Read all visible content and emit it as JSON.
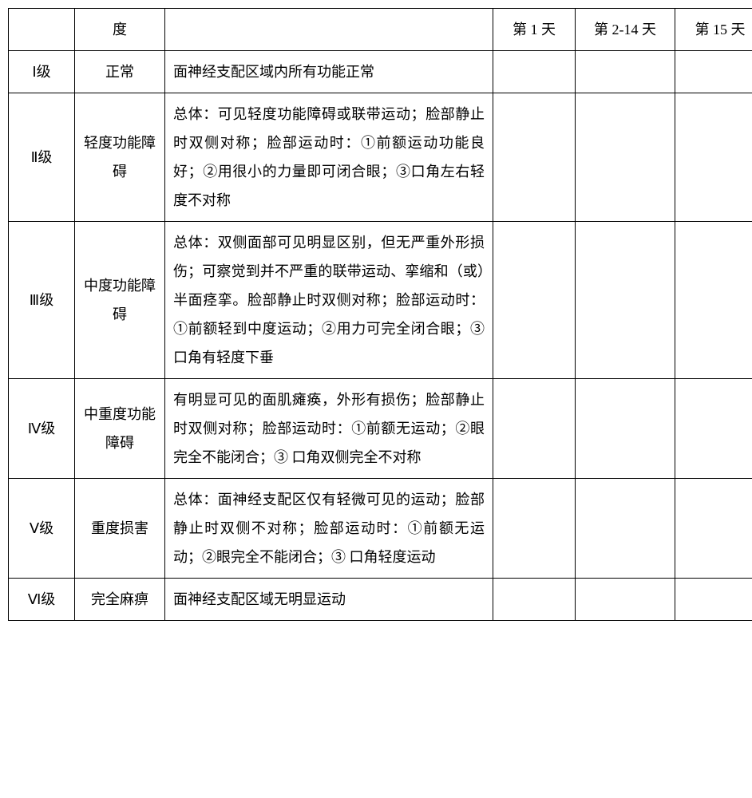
{
  "header": {
    "grade": "",
    "degree": "度",
    "desc": "",
    "day1": "第 1 天",
    "day2": "第 2-14 天",
    "day3": "第 15 天"
  },
  "rows": [
    {
      "grade": "Ⅰ级",
      "degree": "正常",
      "desc": "面神经支配区域内所有功能正常",
      "day1": "",
      "day2": "",
      "day3": ""
    },
    {
      "grade": "Ⅱ级",
      "degree": "轻度功能障碍",
      "desc": "总体：可见轻度功能障碍或联带运动；脸部静止时双侧对称；脸部运动时：①前额运动功能良好；②用很小的力量即可闭合眼；③口角左右轻度不对称",
      "day1": "",
      "day2": "",
      "day3": ""
    },
    {
      "grade": "Ⅲ级",
      "degree": "中度功能障碍",
      "desc": "总体：双侧面部可见明显区别，但无严重外形损伤；可察觉到并不严重的联带运动、挛缩和（或）半面痉挛。脸部静止时双侧对称；脸部运动时：①前额轻到中度运动；②用力可完全闭合眼；③口角有轻度下垂",
      "day1": "",
      "day2": "",
      "day3": ""
    },
    {
      "grade": "Ⅳ级",
      "degree": "中重度功能障碍",
      "desc": "有明显可见的面肌瘫痪，外形有损伤；脸部静止时双侧对称；脸部运动时：①前额无运动；②眼完全不能闭合；③ 口角双侧完全不对称",
      "day1": "",
      "day2": "",
      "day3": ""
    },
    {
      "grade": "Ⅴ级",
      "degree": "重度损害",
      "desc": "总体：面神经支配区仅有轻微可见的运动；脸部静止时双侧不对称；脸部运动时：①前额无运动；②眼完全不能闭合；③ 口角轻度运动",
      "day1": "",
      "day2": "",
      "day3": ""
    },
    {
      "grade": "Ⅵ级",
      "degree": "完全麻痹",
      "desc": "面神经支配区域无明显运动",
      "day1": "",
      "day2": "",
      "day3": ""
    }
  ]
}
